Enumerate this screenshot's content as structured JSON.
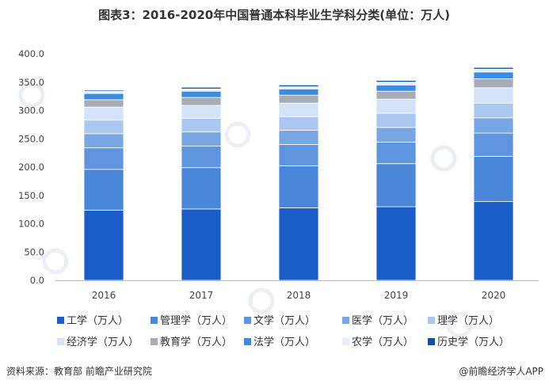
{
  "chart_data": {
    "type": "bar",
    "stacked": true,
    "title": "图表3：2016-2020年中国普通本科毕业生学科分类(单位：万人)",
    "categories": [
      "2016",
      "2017",
      "2018",
      "2019",
      "2020"
    ],
    "ylim": [
      0,
      400
    ],
    "yticks": [
      "0.0",
      "50.0",
      "100.0",
      "150.0",
      "200.0",
      "250.0",
      "300.0",
      "350.0",
      "400.0"
    ],
    "grid": false,
    "legend_position": "bottom",
    "series": [
      {
        "name": "工学（万人）",
        "color": "#1a5cc8",
        "values": [
          124,
          126,
          128,
          130,
          139
        ]
      },
      {
        "name": "管理学（万人）",
        "color": "#4a86d8",
        "values": [
          72,
          73,
          74,
          76,
          80
        ]
      },
      {
        "name": "文学（万人）",
        "color": "#5f95de",
        "values": [
          38,
          38,
          38,
          38,
          41
        ]
      },
      {
        "name": "医学（万人）",
        "color": "#78a6e2",
        "values": [
          25,
          25,
          25,
          26,
          27
        ]
      },
      {
        "name": "理学（万人）",
        "color": "#a9c7ef",
        "values": [
          24,
          24,
          24,
          25,
          26
        ]
      },
      {
        "name": "经济学（万人）",
        "color": "#d3e3f8",
        "values": [
          23,
          23,
          24,
          25,
          27
        ]
      },
      {
        "name": "教育学（万人）",
        "color": "#a8acb5",
        "values": [
          13,
          14,
          14,
          14,
          16
        ]
      },
      {
        "name": "法学（万人）",
        "color": "#3b8be0",
        "values": [
          11,
          11,
          11,
          11,
          12
        ]
      },
      {
        "name": "农学（万人）",
        "color": "#e7eef9",
        "values": [
          4,
          4,
          4,
          5,
          5
        ]
      },
      {
        "name": "历史学（万人）",
        "color": "#0f4fae",
        "values": [
          2,
          3,
          3,
          3,
          3
        ]
      }
    ]
  },
  "footer": {
    "source": "资料来源：教育部 前瞻产业研究院",
    "brand": "@前瞻经济学人APP"
  }
}
